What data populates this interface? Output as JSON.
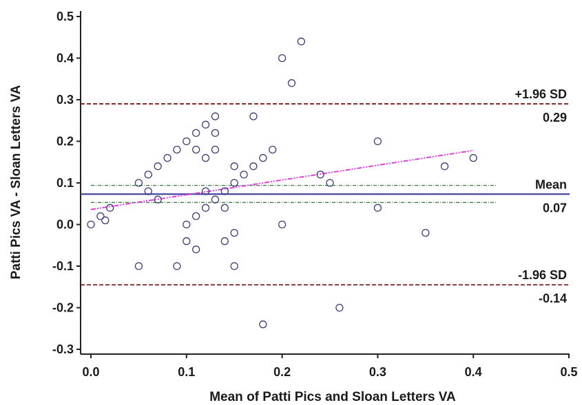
{
  "chart_data": {
    "type": "scatter",
    "title": "",
    "xlabel": "Mean of Patti Pics and Sloan Letters VA",
    "ylabel": "Patti Pics VA - Sloan Letters VA",
    "xlim": [
      0.0,
      0.5
    ],
    "ylim": [
      -0.3,
      0.5
    ],
    "x_ticks": [
      "0.0",
      "0.1",
      "0.2",
      "0.3",
      "0.4",
      "0.5"
    ],
    "y_ticks": [
      "-0.3",
      "-0.2",
      "-0.1",
      "0.0",
      "0.1",
      "0.2",
      "0.3",
      "0.4",
      "0.5"
    ],
    "grid": false,
    "series": [
      {
        "marker": "open-circle",
        "color": "#3d3d7a",
        "points": [
          [
            0.0,
            0.0
          ],
          [
            0.01,
            0.02
          ],
          [
            0.015,
            0.01
          ],
          [
            0.02,
            0.04
          ],
          [
            0.05,
            0.1
          ],
          [
            0.05,
            -0.1
          ],
          [
            0.06,
            0.12
          ],
          [
            0.06,
            0.08
          ],
          [
            0.07,
            0.14
          ],
          [
            0.07,
            0.06
          ],
          [
            0.08,
            0.16
          ],
          [
            0.09,
            0.18
          ],
          [
            0.09,
            -0.1
          ],
          [
            0.1,
            0.2
          ],
          [
            0.1,
            0.0
          ],
          [
            0.1,
            -0.04
          ],
          [
            0.11,
            0.22
          ],
          [
            0.11,
            0.18
          ],
          [
            0.11,
            0.02
          ],
          [
            0.11,
            -0.06
          ],
          [
            0.12,
            0.24
          ],
          [
            0.12,
            0.16
          ],
          [
            0.12,
            0.08
          ],
          [
            0.12,
            0.04
          ],
          [
            0.13,
            0.26
          ],
          [
            0.13,
            0.22
          ],
          [
            0.13,
            0.18
          ],
          [
            0.13,
            0.06
          ],
          [
            0.14,
            0.08
          ],
          [
            0.14,
            0.04
          ],
          [
            0.14,
            -0.04
          ],
          [
            0.15,
            0.14
          ],
          [
            0.15,
            0.1
          ],
          [
            0.15,
            -0.02
          ],
          [
            0.15,
            -0.1
          ],
          [
            0.16,
            0.12
          ],
          [
            0.17,
            0.26
          ],
          [
            0.17,
            0.14
          ],
          [
            0.18,
            0.16
          ],
          [
            0.18,
            -0.24
          ],
          [
            0.19,
            0.18
          ],
          [
            0.2,
            0.4
          ],
          [
            0.2,
            0.0
          ],
          [
            0.21,
            0.34
          ],
          [
            0.22,
            0.44
          ],
          [
            0.24,
            0.12
          ],
          [
            0.25,
            0.1
          ],
          [
            0.26,
            -0.2
          ],
          [
            0.3,
            0.2
          ],
          [
            0.3,
            0.04
          ],
          [
            0.35,
            -0.02
          ],
          [
            0.37,
            0.14
          ],
          [
            0.4,
            0.16
          ]
        ]
      }
    ],
    "reference_lines": [
      {
        "name": "upper_loa",
        "value": 0.29,
        "label_top": "+1.96 SD",
        "label_bottom": "0.29",
        "color": "#7a1c1c",
        "style": "dashed"
      },
      {
        "name": "mean",
        "value": 0.073,
        "label_top": "Mean",
        "label_bottom": "0.07",
        "color": "#3b3b9a",
        "style": "solid"
      },
      {
        "name": "lower_loa",
        "value": -0.145,
        "label_top": "-1.96 SD",
        "label_bottom": "-0.14",
        "color": "#7a1c1c",
        "style": "dashed"
      }
    ],
    "mean_ci": {
      "lower": 0.053,
      "upper": 0.094,
      "x_range": [
        0.0,
        0.425
      ],
      "color": "#3c7a3c",
      "style": "dash-dot"
    },
    "regression_line": {
      "x_range": [
        0.0,
        0.4
      ],
      "y_start": 0.036,
      "y_end": 0.178,
      "color": "#e03ee0",
      "style": "dash-dot-dot"
    }
  }
}
